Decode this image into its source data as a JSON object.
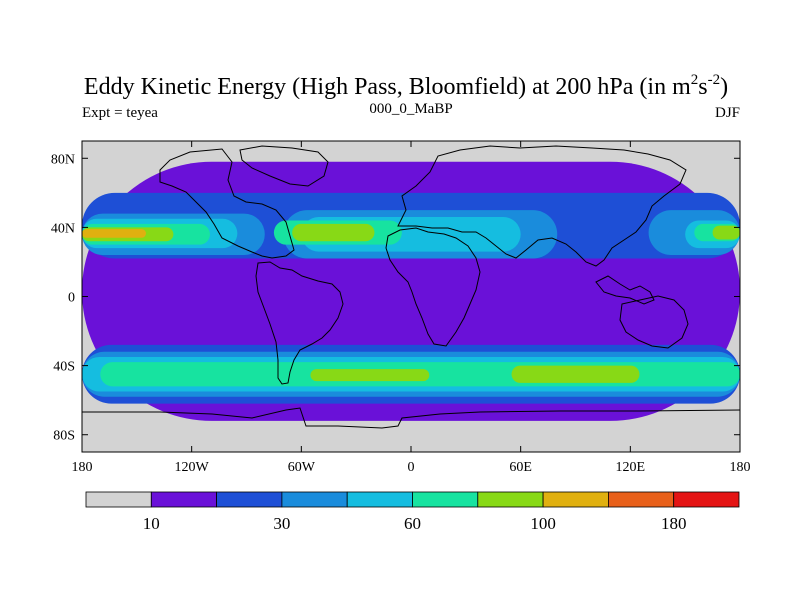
{
  "chart_data": {
    "type": "heatmap",
    "title": {
      "main": "Eddy Kinetic Energy (High Pass, Bloomfield) at 200 hPa (in m",
      "sup1": "2",
      "mid": "s",
      "sup2": "-2",
      "end": ")"
    },
    "subtitle": "000_0_MaBP",
    "left_label": "Expt = teyea",
    "right_label": "DJF",
    "x_ticks": [
      {
        "value": -180,
        "label": "180"
      },
      {
        "value": -120,
        "label": "120W"
      },
      {
        "value": -60,
        "label": "60W"
      },
      {
        "value": 0,
        "label": "0"
      },
      {
        "value": 60,
        "label": "60E"
      },
      {
        "value": 120,
        "label": "120E"
      },
      {
        "value": 180,
        "label": "180"
      }
    ],
    "y_ticks": [
      {
        "value": 80,
        "label": "80N"
      },
      {
        "value": 40,
        "label": "40N"
      },
      {
        "value": 0,
        "label": "0"
      },
      {
        "value": -40,
        "label": "40S"
      },
      {
        "value": -80,
        "label": "80S"
      }
    ],
    "xlim": [
      -180,
      180
    ],
    "ylim": [
      -90,
      90
    ],
    "colorbar": {
      "colors": [
        "#d3d3d3",
        "#6a11d8",
        "#1e4fd6",
        "#1a8cdc",
        "#15bde0",
        "#17e3a0",
        "#88d916",
        "#e0b010",
        "#e8601a",
        "#e41414"
      ],
      "labels": [
        {
          "index": 1,
          "text": "10"
        },
        {
          "index": 3,
          "text": "30"
        },
        {
          "index": 5,
          "text": "60"
        },
        {
          "index": 7,
          "text": "100"
        },
        {
          "index": 9,
          "text": "180"
        }
      ]
    },
    "levels": {
      "gray": "#d3d3d3",
      "violet": "#6a11d8",
      "blue": "#1e4fd6",
      "sky": "#1a8cdc",
      "cyan": "#15bde0",
      "teal": "#17e3a0",
      "lime": "#88d916",
      "orange": "#e0b010"
    },
    "field_regions": [
      {
        "level": "violet",
        "lon": [
          -180,
          180
        ],
        "lat": [
          -72,
          78
        ]
      },
      {
        "level": "blue",
        "lon": [
          -180,
          180
        ],
        "lat": [
          22,
          60
        ]
      },
      {
        "level": "sky",
        "lon": [
          -180,
          -80
        ],
        "lat": [
          24,
          48
        ]
      },
      {
        "level": "sky",
        "lon": [
          -70,
          80
        ],
        "lat": [
          22,
          50
        ]
      },
      {
        "level": "sky",
        "lon": [
          130,
          180
        ],
        "lat": [
          24,
          50
        ]
      },
      {
        "level": "cyan",
        "lon": [
          -180,
          -95
        ],
        "lat": [
          28,
          45
        ]
      },
      {
        "level": "cyan",
        "lon": [
          -60,
          60
        ],
        "lat": [
          26,
          46
        ]
      },
      {
        "level": "cyan",
        "lon": [
          150,
          180
        ],
        "lat": [
          28,
          44
        ]
      },
      {
        "level": "teal",
        "lon": [
          -180,
          -110
        ],
        "lat": [
          30,
          42
        ]
      },
      {
        "level": "teal",
        "lon": [
          -75,
          -5
        ],
        "lat": [
          30,
          44
        ]
      },
      {
        "level": "teal",
        "lon": [
          155,
          180
        ],
        "lat": [
          32,
          42
        ]
      },
      {
        "level": "lime",
        "lon": [
          -180,
          -130
        ],
        "lat": [
          32,
          40
        ]
      },
      {
        "level": "lime",
        "lon": [
          -65,
          -20
        ],
        "lat": [
          32,
          42
        ]
      },
      {
        "level": "lime",
        "lon": [
          165,
          180
        ],
        "lat": [
          33,
          41
        ]
      },
      {
        "level": "orange",
        "lon": [
          -180,
          -145
        ],
        "lat": [
          34,
          39
        ]
      },
      {
        "level": "blue",
        "lon": [
          -180,
          180
        ],
        "lat": [
          -62,
          -28
        ]
      },
      {
        "level": "sky",
        "lon": [
          -180,
          180
        ],
        "lat": [
          -58,
          -32
        ]
      },
      {
        "level": "cyan",
        "lon": [
          -180,
          180
        ],
        "lat": [
          -55,
          -35
        ]
      },
      {
        "level": "teal",
        "lon": [
          -170,
          180
        ],
        "lat": [
          -52,
          -38
        ]
      },
      {
        "level": "lime",
        "lon": [
          55,
          125
        ],
        "lat": [
          -50,
          -40
        ]
      },
      {
        "level": "lime",
        "lon": [
          -55,
          10
        ],
        "lat": [
          -49,
          -42
        ]
      }
    ]
  }
}
